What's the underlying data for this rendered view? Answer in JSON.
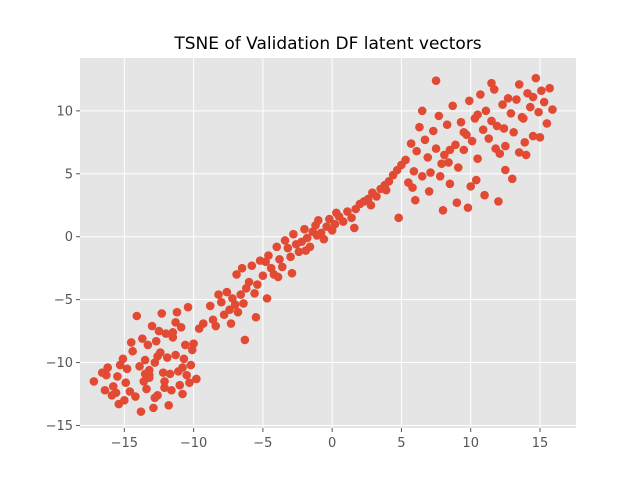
{
  "chart_data": {
    "type": "scatter",
    "title": "TSNE of Validation DF latent vectors",
    "xlabel": "",
    "ylabel": "",
    "xlim": [
      -18.2,
      17.6
    ],
    "ylim": [
      -15.2,
      14.2
    ],
    "x_ticks": [
      -15,
      -10,
      -5,
      0,
      5,
      10,
      15
    ],
    "y_ticks": [
      -15,
      -10,
      -5,
      0,
      5,
      10
    ],
    "grid": true,
    "colors": {
      "plot_background": "#e5e5e5",
      "grid": "#ffffff",
      "marker": "#e24a33",
      "tick_label": "#555555"
    },
    "series": [
      {
        "x": [
          -17.2,
          -16.6,
          -16.4,
          -16.3,
          -16.2,
          -15.9,
          -15.8,
          -15.6,
          -15.5,
          -15.4,
          -15.3,
          -15.1,
          -14.9,
          -14.8,
          -14.6,
          -14.4,
          -14.2,
          -14.1,
          -13.9,
          -13.8,
          -13.6,
          -13.5,
          -13.4,
          -13.3,
          -13.2,
          -13.2,
          -13.0,
          -12.9,
          -12.8,
          -12.7,
          -12.6,
          -12.5,
          -12.4,
          -12.3,
          -12.2,
          -12.1,
          -12.0,
          -11.9,
          -11.8,
          -11.7,
          -11.6,
          -11.5,
          -11.3,
          -11.2,
          -11.1,
          -11.0,
          -10.9,
          -10.8,
          -10.7,
          -10.6,
          -10.5,
          -10.4,
          -10.2,
          -10.1,
          -10.0,
          -9.8,
          -9.6,
          -9.3,
          -13.7,
          -13.2,
          -12.6,
          -12.1,
          -11.3,
          -10.8,
          -10.3,
          -14.5,
          -12.8,
          -11.5,
          -15.0,
          -13.5,
          -8.8,
          -8.6,
          -8.4,
          -8.2,
          -8.0,
          -7.8,
          -7.6,
          -7.4,
          -7.3,
          -7.2,
          -7.0,
          -6.9,
          -6.8,
          -6.6,
          -6.5,
          -6.4,
          -6.2,
          -6.0,
          -5.8,
          -5.6,
          -5.4,
          -5.2,
          -5.0,
          -4.8,
          -4.6,
          -4.4,
          -4.2,
          -4.0,
          -3.8,
          -3.6,
          -3.4,
          -3.2,
          -3.0,
          -2.8,
          -2.6,
          -2.4,
          -2.2,
          -2.0,
          -1.8,
          -1.6,
          -1.4,
          -1.2,
          -1.0,
          -0.8,
          -0.6,
          -0.4,
          -0.2,
          0.0,
          0.2,
          0.5,
          0.8,
          1.1,
          1.4,
          1.7,
          2.0,
          2.3,
          2.6,
          2.9,
          3.2,
          3.5,
          3.8,
          4.1,
          4.4,
          4.7,
          5.0,
          -6.3,
          -5.5,
          -4.7,
          -3.9,
          -2.9,
          -1.9,
          -1.1,
          0.3,
          1.6,
          2.8,
          3.9,
          4.8,
          5.3,
          5.5,
          5.7,
          5.9,
          6.1,
          6.3,
          6.5,
          6.7,
          6.9,
          7.1,
          7.3,
          7.5,
          7.7,
          7.9,
          8.1,
          8.3,
          8.5,
          8.7,
          8.9,
          9.1,
          9.3,
          9.5,
          9.7,
          9.9,
          10.1,
          10.3,
          10.5,
          10.7,
          10.9,
          11.1,
          11.3,
          11.5,
          11.7,
          11.9,
          12.1,
          12.3,
          12.5,
          12.7,
          12.9,
          13.1,
          13.3,
          13.5,
          13.7,
          13.9,
          14.1,
          14.3,
          14.5,
          14.7,
          14.9,
          15.1,
          15.3,
          15.5,
          15.7,
          15.9,
          6.0,
          7.0,
          8.0,
          9.0,
          10.0,
          11.0,
          12.0,
          13.0,
          14.0,
          15.0,
          6.5,
          7.5,
          8.5,
          9.5,
          10.5,
          11.5,
          12.5,
          13.5,
          14.5,
          5.8,
          7.8,
          9.8,
          11.8,
          13.8,
          8.4,
          10.4,
          12.4
        ],
        "y": [
          -11.5,
          -10.8,
          -12.2,
          -11.0,
          -10.4,
          -12.6,
          -11.9,
          -12.4,
          -11.1,
          -13.3,
          -10.2,
          -9.7,
          -11.6,
          -10.5,
          -12.3,
          -9.1,
          -12.7,
          -6.3,
          -10.3,
          -13.9,
          -11.5,
          -9.8,
          -12.1,
          -8.6,
          -10.6,
          -11.2,
          -7.1,
          -13.6,
          -10.0,
          -8.3,
          -12.6,
          -7.5,
          -9.2,
          -6.1,
          -10.8,
          -11.5,
          -7.7,
          -9.6,
          -13.4,
          -10.9,
          -12.2,
          -8.0,
          -9.4,
          -6.0,
          -10.7,
          -11.8,
          -7.2,
          -12.5,
          -9.7,
          -8.6,
          -11.0,
          -5.6,
          -10.2,
          -9.0,
          -8.5,
          -11.3,
          -7.3,
          -6.9,
          -8.1,
          -11.0,
          -9.5,
          -12.0,
          -6.8,
          -10.4,
          -11.6,
          -8.4,
          -12.8,
          -7.6,
          -13.0,
          -10.9,
          -5.5,
          -6.6,
          -7.1,
          -4.6,
          -5.2,
          -6.2,
          -4.4,
          -5.8,
          -6.9,
          -4.9,
          -5.4,
          -3.0,
          -6.0,
          -4.6,
          -2.5,
          -5.3,
          -4.1,
          -3.6,
          -2.3,
          -4.5,
          -3.8,
          -1.9,
          -3.1,
          -2.0,
          -1.5,
          -2.5,
          -3.0,
          -0.8,
          -1.8,
          -2.4,
          -0.3,
          -0.9,
          -1.6,
          0.2,
          -0.6,
          -1.2,
          -0.4,
          0.6,
          -0.1,
          -0.8,
          0.4,
          0.9,
          1.3,
          0.3,
          -0.2,
          0.8,
          1.4,
          0.5,
          1.0,
          1.6,
          1.2,
          2.0,
          1.5,
          2.2,
          2.6,
          2.8,
          3.0,
          3.5,
          3.2,
          3.8,
          4.1,
          4.4,
          4.9,
          5.3,
          5.7,
          -8.2,
          -6.4,
          -4.9,
          -3.2,
          -2.9,
          -1.1,
          0.1,
          1.9,
          0.7,
          2.5,
          3.7,
          1.5,
          6.1,
          4.3,
          7.4,
          5.2,
          6.8,
          8.7,
          4.8,
          7.7,
          6.3,
          5.1,
          8.4,
          7.0,
          9.6,
          5.8,
          6.5,
          8.9,
          4.2,
          10.4,
          7.3,
          5.5,
          9.1,
          6.9,
          8.1,
          10.8,
          7.6,
          9.4,
          6.2,
          11.3,
          8.5,
          10.0,
          7.8,
          9.2,
          11.7,
          8.8,
          6.6,
          10.5,
          7.2,
          11.0,
          9.8,
          8.3,
          10.9,
          12.1,
          9.5,
          7.5,
          11.4,
          10.3,
          8.0,
          12.6,
          9.9,
          11.6,
          10.7,
          9.0,
          11.8,
          10.1,
          2.9,
          3.6,
          2.1,
          2.7,
          4.0,
          3.3,
          2.8,
          4.6,
          6.5,
          7.9,
          10.0,
          12.4,
          6.9,
          8.3,
          9.7,
          12.2,
          5.3,
          6.7,
          11.1,
          3.9,
          4.8,
          2.3,
          7.0,
          9.4,
          5.9,
          4.5,
          8.6
        ]
      }
    ]
  }
}
